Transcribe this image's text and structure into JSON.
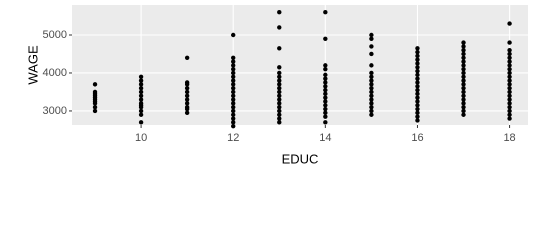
{
  "chart_data": {
    "type": "scatter",
    "x_label": "EDUC",
    "y_label": "WAGE",
    "x": [
      9,
      9,
      9,
      9,
      9,
      9,
      9,
      9,
      9,
      9,
      10,
      10,
      10,
      10,
      10,
      10,
      10,
      10,
      10,
      10,
      10,
      10,
      10,
      11,
      11,
      11,
      11,
      11,
      11,
      11,
      11,
      11,
      11,
      11,
      12,
      12,
      12,
      12,
      12,
      12,
      12,
      12,
      12,
      12,
      12,
      12,
      12,
      12,
      12,
      12,
      12,
      12,
      12,
      12,
      13,
      13,
      13,
      13,
      13,
      13,
      13,
      13,
      13,
      13,
      13,
      13,
      13,
      13,
      13,
      13,
      13,
      13,
      14,
      14,
      14,
      14,
      14,
      14,
      14,
      14,
      14,
      14,
      14,
      14,
      14,
      14,
      14,
      14,
      14,
      15,
      15,
      15,
      15,
      15,
      15,
      15,
      15,
      15,
      15,
      15,
      15,
      15,
      15,
      15,
      15,
      15,
      16,
      16,
      16,
      16,
      16,
      16,
      16,
      16,
      16,
      16,
      16,
      16,
      16,
      16,
      16,
      16,
      16,
      16,
      16,
      16,
      17,
      17,
      17,
      17,
      17,
      17,
      17,
      17,
      17,
      17,
      17,
      17,
      17,
      17,
      17,
      17,
      17,
      17,
      17,
      17,
      18,
      18,
      18,
      18,
      18,
      18,
      18,
      18,
      18,
      18,
      18,
      18,
      18,
      18,
      18,
      18,
      18,
      18,
      18,
      18,
      18
    ],
    "y": [
      3000,
      3100,
      3200,
      3250,
      3300,
      3350,
      3400,
      3450,
      3500,
      3700,
      2700,
      2900,
      3000,
      3100,
      3150,
      3200,
      3300,
      3400,
      3500,
      3600,
      3700,
      3800,
      3900,
      2950,
      3050,
      3100,
      3200,
      3300,
      3400,
      3500,
      3600,
      3700,
      3750,
      4400,
      2600,
      2700,
      2800,
      2900,
      3000,
      3100,
      3200,
      3300,
      3400,
      3500,
      3600,
      3700,
      3800,
      3900,
      4000,
      4100,
      4200,
      4300,
      4400,
      5000,
      2700,
      2800,
      2900,
      3000,
      3100,
      3200,
      3300,
      3400,
      3500,
      3600,
      3700,
      3800,
      3900,
      4000,
      4150,
      4650,
      5200,
      5600,
      2700,
      2850,
      2950,
      3050,
      3150,
      3250,
      3350,
      3450,
      3550,
      3650,
      3750,
      3850,
      3950,
      4100,
      4200,
      4900,
      5600,
      2900,
      3000,
      3100,
      3200,
      3300,
      3400,
      3500,
      3600,
      3700,
      3800,
      3900,
      4000,
      4200,
      4500,
      4700,
      4900,
      5000,
      2750,
      2850,
      2950,
      3050,
      3150,
      3250,
      3350,
      3450,
      3550,
      3650,
      3750,
      3850,
      3950,
      4050,
      4150,
      4250,
      4350,
      4450,
      4550,
      4650,
      2900,
      3000,
      3100,
      3200,
      3300,
      3400,
      3500,
      3600,
      3700,
      3800,
      3900,
      4000,
      4100,
      4200,
      4300,
      4400,
      4500,
      4600,
      4700,
      4800,
      2800,
      2900,
      3000,
      3100,
      3200,
      3300,
      3400,
      3500,
      3600,
      3700,
      3800,
      3900,
      4000,
      4100,
      4200,
      4300,
      4400,
      4500,
      4600,
      4800,
      5300
    ],
    "color": "#000000",
    "xlim": [
      8.5,
      18.4
    ],
    "ylim": [
      2630,
      5790
    ],
    "xticks": [
      10,
      12,
      14,
      16,
      18
    ],
    "yticks": [
      3000,
      4000,
      5000
    ],
    "grid": true
  }
}
